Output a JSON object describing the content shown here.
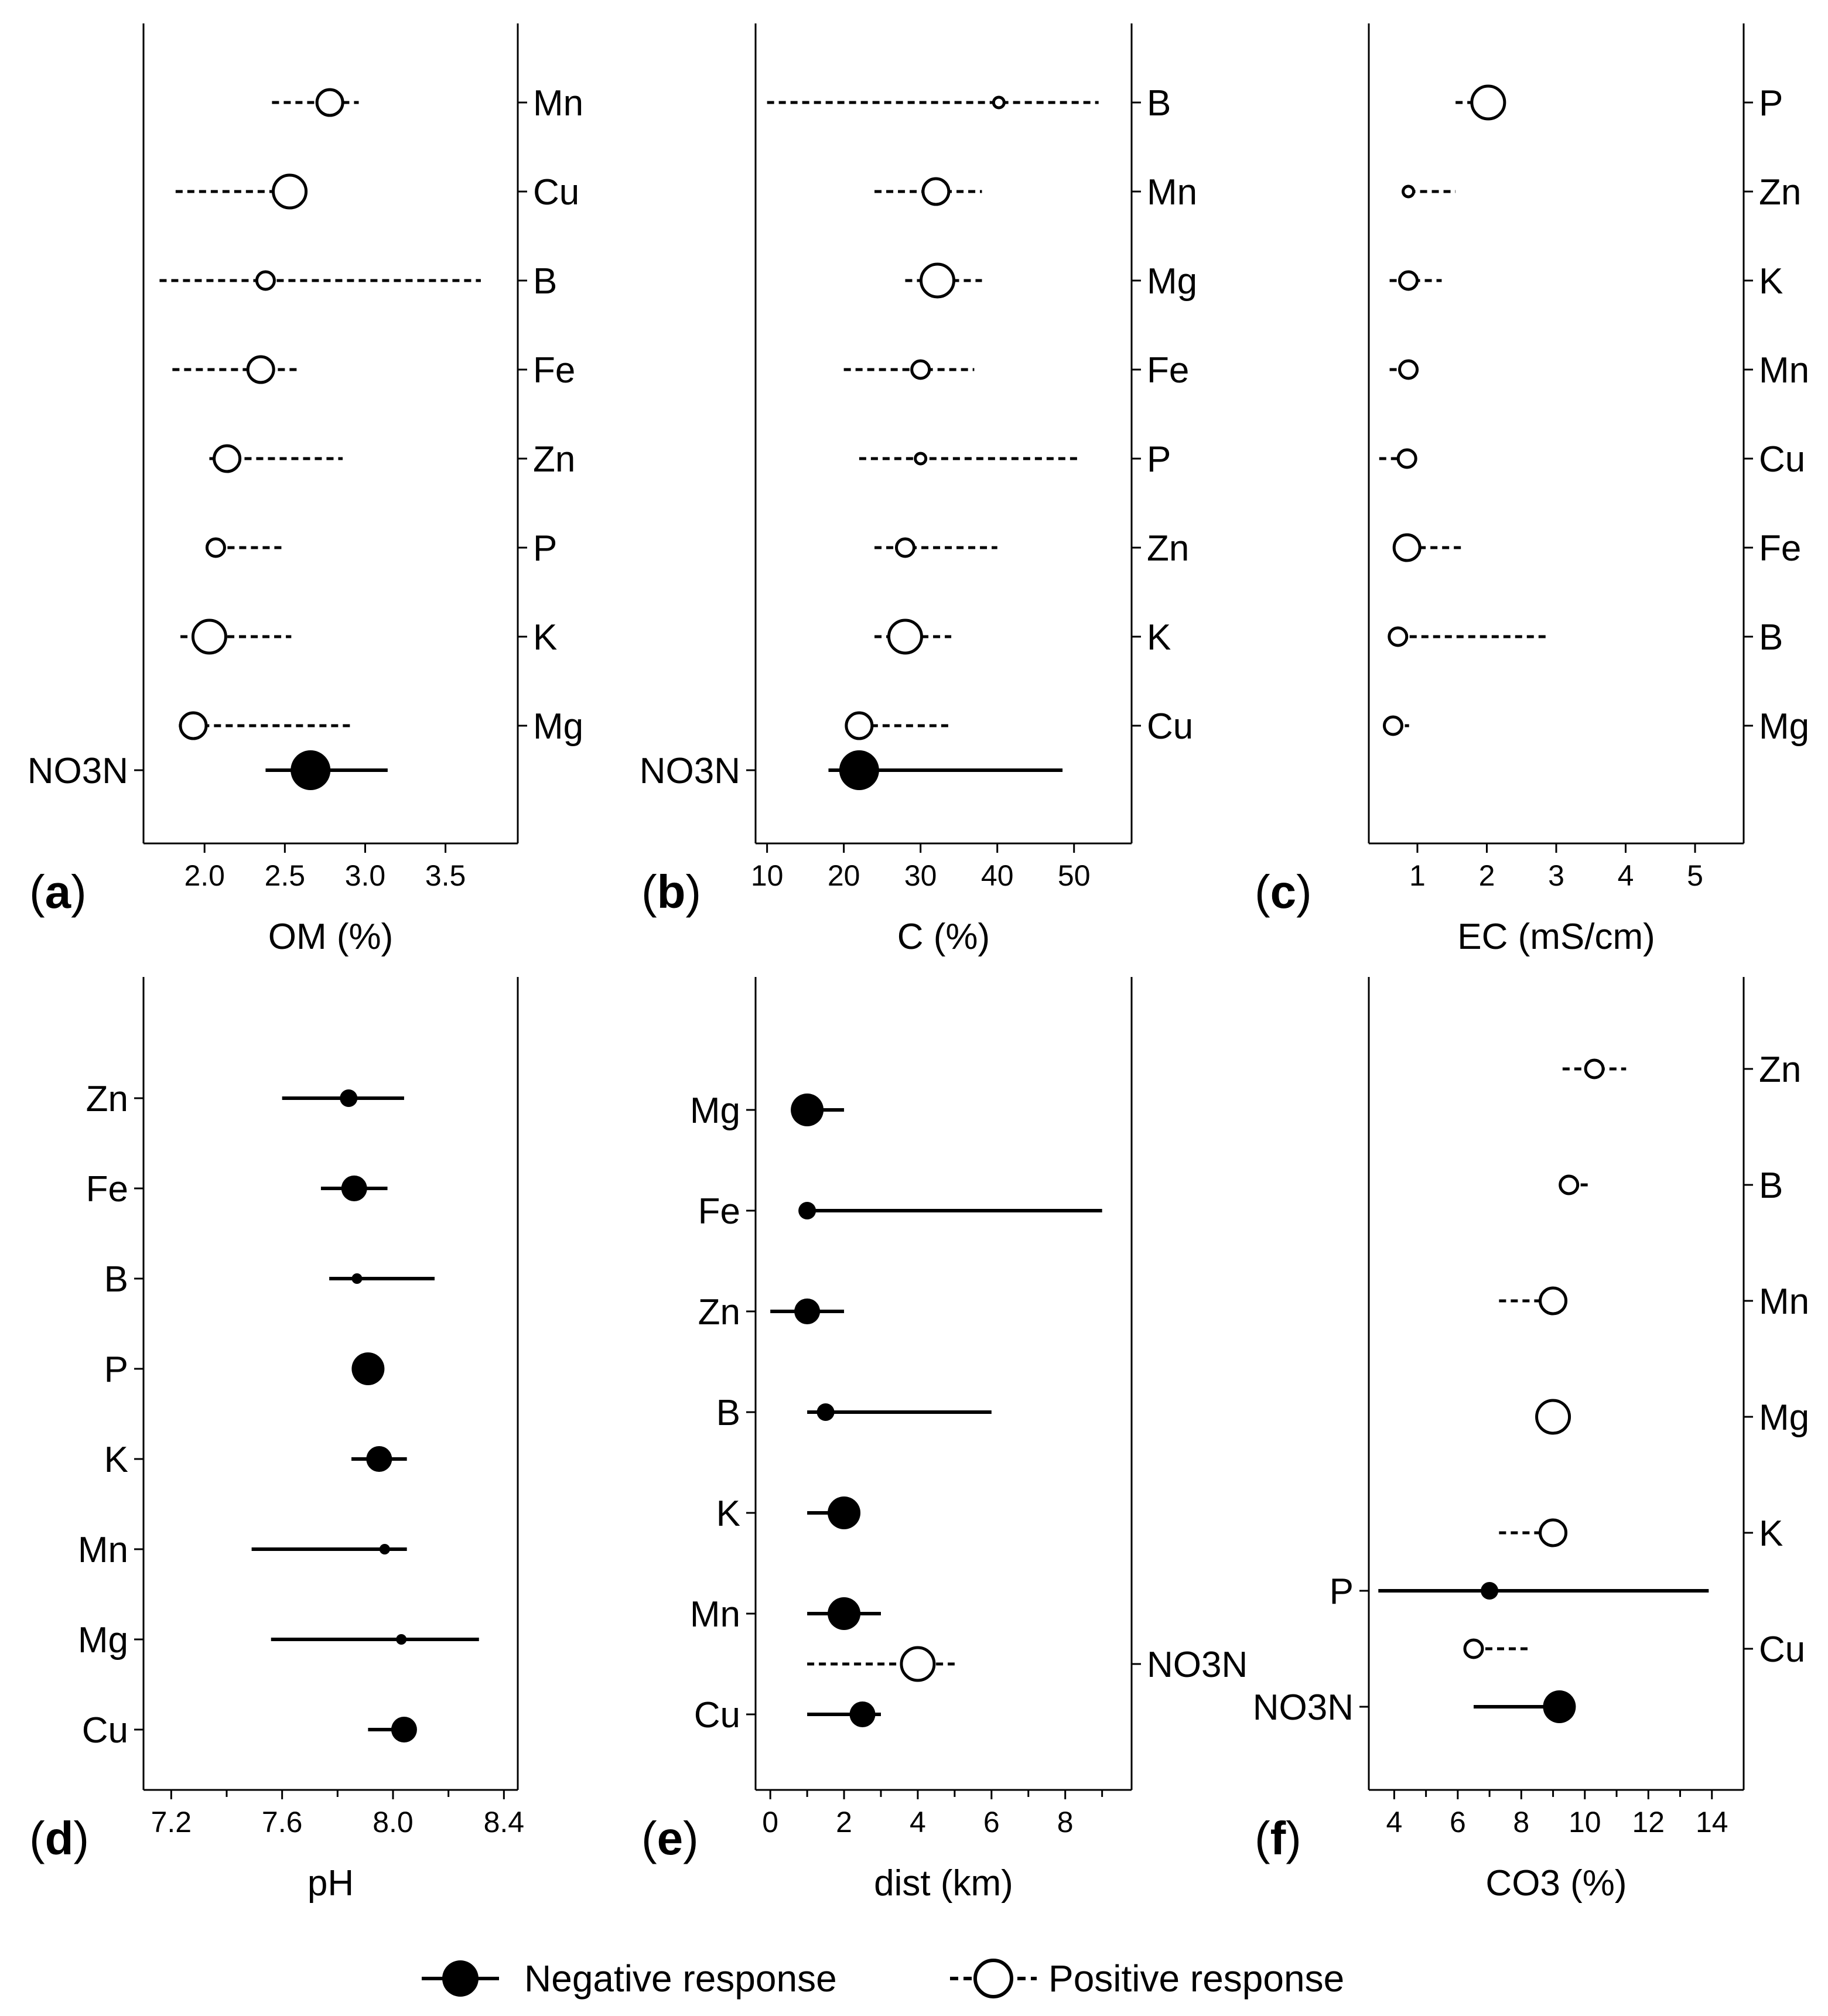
{
  "chart_data": [
    {
      "panel": "(a)",
      "panel_letter": "a",
      "type": "scatter",
      "xlabel": "OM (%)",
      "xlim": [
        1.62,
        3.95
      ],
      "ticks": [
        2.0,
        2.5,
        3.0,
        3.5
      ],
      "tick_labels": [
        "2.0",
        "2.5",
        "3.0",
        "3.5"
      ],
      "labels_side": "right",
      "points": [
        {
          "name": "Mn",
          "pos": 1,
          "x": 2.78,
          "lo": 2.42,
          "hi": 2.96,
          "size": "medium",
          "response": "positive"
        },
        {
          "name": "Cu",
          "pos": 2,
          "x": 2.53,
          "lo": 1.82,
          "hi": 2.53,
          "size": "large",
          "response": "positive"
        },
        {
          "name": "B",
          "pos": 3,
          "x": 2.38,
          "lo": 1.72,
          "hi": 3.72,
          "size": "small",
          "response": "positive"
        },
        {
          "name": "Fe",
          "pos": 4,
          "x": 2.35,
          "lo": 1.8,
          "hi": 2.58,
          "size": "medium",
          "response": "positive"
        },
        {
          "name": "Zn",
          "pos": 5,
          "x": 2.14,
          "lo": 2.03,
          "hi": 2.86,
          "size": "medium",
          "response": "positive"
        },
        {
          "name": "P",
          "pos": 6,
          "x": 2.07,
          "lo": 2.07,
          "hi": 2.5,
          "size": "small",
          "response": "positive"
        },
        {
          "name": "K",
          "pos": 7,
          "x": 2.03,
          "lo": 1.85,
          "hi": 2.54,
          "size": "large",
          "response": "positive"
        },
        {
          "name": "Mg",
          "pos": 8,
          "x": 1.93,
          "lo": 1.84,
          "hi": 2.92,
          "size": "medium",
          "response": "positive"
        },
        {
          "name": "NO3N",
          "pos": 8.5,
          "x": 2.66,
          "lo": 2.38,
          "hi": 3.14,
          "size": "xlarge",
          "response": "negative",
          "label_side": "left"
        }
      ]
    },
    {
      "panel": "(b)",
      "panel_letter": "b",
      "type": "scatter",
      "xlabel": "C (%)",
      "xlim": [
        8.5,
        57.5
      ],
      "ticks": [
        10,
        20,
        30,
        40,
        50
      ],
      "tick_labels": [
        "10",
        "20",
        "30",
        "40",
        "50"
      ],
      "labels_side": "right",
      "points": [
        {
          "name": "B",
          "pos": 1,
          "x": 40.2,
          "lo": 10.0,
          "hi": 53.2,
          "size": "tiny",
          "response": "positive"
        },
        {
          "name": "Mn",
          "pos": 2,
          "x": 32.0,
          "lo": 24.0,
          "hi": 38.0,
          "size": "medium",
          "response": "positive"
        },
        {
          "name": "Mg",
          "pos": 3,
          "x": 32.2,
          "lo": 28.0,
          "hi": 38.0,
          "size": "large",
          "response": "positive"
        },
        {
          "name": "Fe",
          "pos": 4,
          "x": 30.0,
          "lo": 20.0,
          "hi": 37.0,
          "size": "small",
          "response": "positive"
        },
        {
          "name": "P",
          "pos": 5,
          "x": 30.0,
          "lo": 22.0,
          "hi": 50.5,
          "size": "tiny",
          "response": "positive"
        },
        {
          "name": "Zn",
          "pos": 6,
          "x": 28.0,
          "lo": 24.0,
          "hi": 40.0,
          "size": "small",
          "response": "positive"
        },
        {
          "name": "K",
          "pos": 7,
          "x": 28.0,
          "lo": 24.0,
          "hi": 34.0,
          "size": "large",
          "response": "positive"
        },
        {
          "name": "Cu",
          "pos": 8,
          "x": 22.0,
          "lo": 22.0,
          "hi": 34.0,
          "size": "medium",
          "response": "positive"
        },
        {
          "name": "NO3N",
          "pos": 8.5,
          "x": 22.0,
          "lo": 18.0,
          "hi": 48.5,
          "size": "xlarge",
          "response": "negative",
          "label_side": "left"
        }
      ]
    },
    {
      "panel": "(c)",
      "panel_letter": "c",
      "type": "scatter",
      "xlabel": "EC (mS/cm)",
      "xlim": [
        0.3,
        5.7
      ],
      "ticks": [
        1,
        2,
        3,
        4,
        5
      ],
      "tick_labels": [
        "1",
        "2",
        "3",
        "4",
        "5"
      ],
      "labels_side": "right",
      "points": [
        {
          "name": "P",
          "pos": 1,
          "x": 2.02,
          "lo": 1.55,
          "hi": 2.02,
          "size": "large",
          "response": "positive"
        },
        {
          "name": "Zn",
          "pos": 2,
          "x": 0.87,
          "lo": 0.87,
          "hi": 1.55,
          "size": "tiny",
          "response": "positive"
        },
        {
          "name": "K",
          "pos": 3,
          "x": 0.87,
          "lo": 0.6,
          "hi": 1.35,
          "size": "small",
          "response": "positive"
        },
        {
          "name": "Mn",
          "pos": 4,
          "x": 0.87,
          "lo": 0.6,
          "hi": 0.87,
          "size": "small",
          "response": "positive"
        },
        {
          "name": "Cu",
          "pos": 5,
          "x": 0.85,
          "lo": 0.45,
          "hi": 0.85,
          "size": "small",
          "response": "positive"
        },
        {
          "name": "Fe",
          "pos": 6,
          "x": 0.85,
          "lo": 0.85,
          "hi": 1.65,
          "size": "medium",
          "response": "positive"
        },
        {
          "name": "B",
          "pos": 7,
          "x": 0.72,
          "lo": 0.72,
          "hi": 2.85,
          "size": "small",
          "response": "positive"
        },
        {
          "name": "Mg",
          "pos": 8,
          "x": 0.65,
          "lo": 0.65,
          "hi": 0.88,
          "size": "small",
          "response": "positive"
        }
      ]
    },
    {
      "panel": "(d)",
      "panel_letter": "d",
      "type": "scatter",
      "xlabel": "pH",
      "xlim": [
        7.1,
        8.45
      ],
      "ticks": [
        7.2,
        7.6,
        8.0,
        8.4
      ],
      "tick_labels": [
        "7.2",
        "7.6",
        "8.0",
        "8.4"
      ],
      "minor_ticks": [
        7.4,
        7.8,
        8.2
      ],
      "labels_side": "left",
      "points": [
        {
          "name": "Zn",
          "pos": 1,
          "x": 7.84,
          "lo": 7.6,
          "hi": 8.04,
          "size": "small",
          "response": "negative"
        },
        {
          "name": "Fe",
          "pos": 2,
          "x": 7.86,
          "lo": 7.74,
          "hi": 7.98,
          "size": "medium",
          "response": "negative"
        },
        {
          "name": "B",
          "pos": 3,
          "x": 7.87,
          "lo": 7.77,
          "hi": 8.15,
          "size": "tiny",
          "response": "negative"
        },
        {
          "name": "P",
          "pos": 4,
          "x": 7.91,
          "lo": 7.91,
          "hi": 7.91,
          "size": "large",
          "response": "negative"
        },
        {
          "name": "K",
          "pos": 5,
          "x": 7.95,
          "lo": 7.85,
          "hi": 8.05,
          "size": "medium",
          "response": "negative"
        },
        {
          "name": "Mn",
          "pos": 6,
          "x": 7.97,
          "lo": 7.49,
          "hi": 8.05,
          "size": "tiny",
          "response": "negative"
        },
        {
          "name": "Mg",
          "pos": 7,
          "x": 8.03,
          "lo": 7.56,
          "hi": 8.31,
          "size": "tiny",
          "response": "negative"
        },
        {
          "name": "Cu",
          "pos": 8,
          "x": 8.04,
          "lo": 7.91,
          "hi": 8.04,
          "size": "medium",
          "response": "negative"
        }
      ]
    },
    {
      "panel": "(e)",
      "panel_letter": "e",
      "type": "scatter",
      "xlabel": "dist (km)",
      "xlim": [
        -0.4,
        9.8
      ],
      "ticks": [
        0,
        2,
        4,
        6,
        8
      ],
      "tick_labels": [
        "0",
        "2",
        "4",
        "6",
        "8"
      ],
      "minor_ticks": [
        1,
        3,
        5,
        7,
        9
      ],
      "labels_side": "left",
      "points": [
        {
          "name": "Mg",
          "pos": 1,
          "x": 1.0,
          "lo": 1.0,
          "hi": 2.0,
          "size": "large",
          "response": "negative"
        },
        {
          "name": "Fe",
          "pos": 2,
          "x": 1.0,
          "lo": 1.0,
          "hi": 9.0,
          "size": "small",
          "response": "negative"
        },
        {
          "name": "Zn",
          "pos": 3,
          "x": 1.0,
          "lo": 0.0,
          "hi": 2.0,
          "size": "medium",
          "response": "negative"
        },
        {
          "name": "B",
          "pos": 4,
          "x": 1.5,
          "lo": 1.0,
          "hi": 6.0,
          "size": "small",
          "response": "negative"
        },
        {
          "name": "K",
          "pos": 5,
          "x": 2.0,
          "lo": 1.0,
          "hi": 2.0,
          "size": "large",
          "response": "negative"
        },
        {
          "name": "Mn",
          "pos": 6,
          "x": 2.0,
          "lo": 1.0,
          "hi": 3.0,
          "size": "large",
          "response": "negative"
        },
        {
          "name": "NO3N",
          "pos": 6.5,
          "x": 4.0,
          "lo": 1.0,
          "hi": 5.0,
          "size": "large",
          "response": "positive",
          "label_side": "right"
        },
        {
          "name": "Cu",
          "pos": 7,
          "x": 2.5,
          "lo": 1.0,
          "hi": 3.0,
          "size": "medium",
          "response": "negative"
        }
      ]
    },
    {
      "panel": "(f)",
      "panel_letter": "f",
      "type": "scatter",
      "xlabel": "CO3 (%)",
      "xlim": [
        3.2,
        15.0
      ],
      "ticks": [
        4,
        6,
        8,
        10,
        12,
        14
      ],
      "tick_labels": [
        "4",
        "6",
        "8",
        "10",
        "12",
        "14"
      ],
      "minor_ticks": [
        5,
        7,
        9,
        11,
        13
      ],
      "labels_side": "right",
      "points": [
        {
          "name": "Zn",
          "pos": 1,
          "x": 10.3,
          "lo": 9.3,
          "hi": 11.3,
          "size": "small",
          "response": "positive"
        },
        {
          "name": "B",
          "pos": 2,
          "x": 9.5,
          "lo": 9.5,
          "hi": 10.2,
          "size": "small",
          "response": "positive"
        },
        {
          "name": "Mn",
          "pos": 3,
          "x": 9.0,
          "lo": 7.3,
          "hi": 9.0,
          "size": "medium",
          "response": "positive"
        },
        {
          "name": "Mg",
          "pos": 4,
          "x": 9.0,
          "lo": 9.0,
          "hi": 9.0,
          "size": "large",
          "response": "positive"
        },
        {
          "name": "K",
          "pos": 5,
          "x": 9.0,
          "lo": 7.3,
          "hi": 9.0,
          "size": "medium",
          "response": "positive"
        },
        {
          "name": "P",
          "pos": 5.5,
          "x": 7.0,
          "lo": 3.5,
          "hi": 13.9,
          "size": "small",
          "response": "negative",
          "label_side": "left"
        },
        {
          "name": "Cu",
          "pos": 6,
          "x": 6.5,
          "lo": 6.5,
          "hi": 8.3,
          "size": "small",
          "response": "positive"
        },
        {
          "name": "NO3N",
          "pos": 6.5,
          "x": 9.2,
          "lo": 6.5,
          "hi": 9.2,
          "size": "large",
          "response": "negative",
          "label_side": "left"
        }
      ]
    }
  ],
  "legend": {
    "negative": "Negative response",
    "positive": "Positive response"
  },
  "colors": {
    "ink": "#000000",
    "background": "#ffffff"
  }
}
